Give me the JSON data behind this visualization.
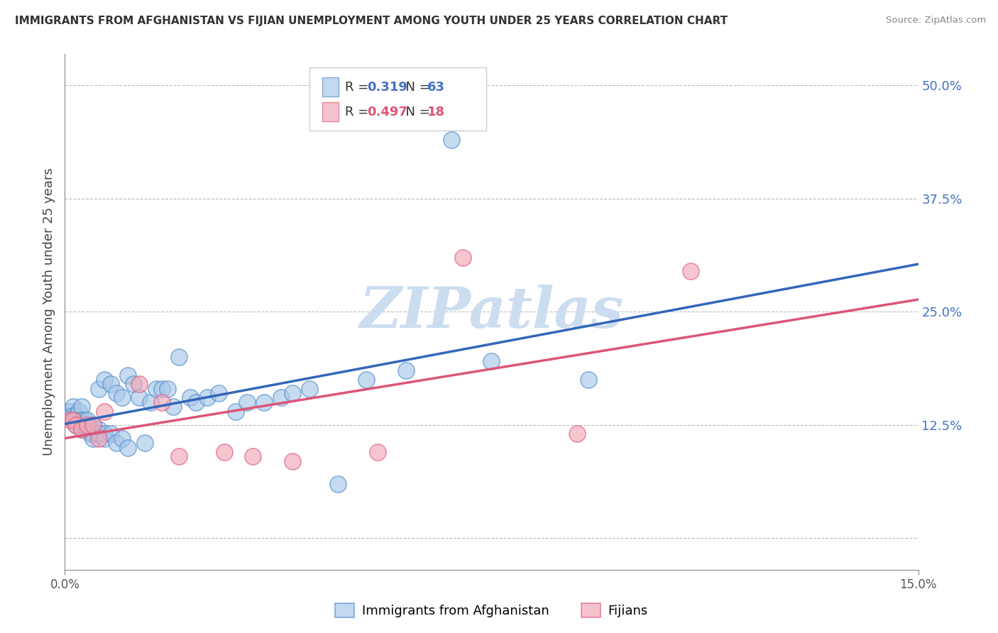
{
  "title": "IMMIGRANTS FROM AFGHANISTAN VS FIJIAN UNEMPLOYMENT AMONG YOUTH UNDER 25 YEARS CORRELATION CHART",
  "source": "Source: ZipAtlas.com",
  "ylabel": "Unemployment Among Youth under 25 years",
  "y_ticks": [
    0.0,
    0.125,
    0.25,
    0.375,
    0.5
  ],
  "y_tick_labels": [
    "",
    "12.5%",
    "25.0%",
    "37.5%",
    "50.0%"
  ],
  "x_range": [
    0.0,
    0.15
  ],
  "y_range": [
    -0.035,
    0.535
  ],
  "legend_label1": "Immigrants from Afghanistan",
  "legend_label2": "Fijians",
  "r1": "0.319",
  "n1": "63",
  "r2": "0.497",
  "n2": "18",
  "color_blue_fill": "#a8c8e8",
  "color_pink_fill": "#f0a8b8",
  "color_blue_edge": "#5590cc",
  "color_pink_edge": "#e06080",
  "color_blue_line": "#3366bb",
  "color_pink_line": "#dd5577",
  "color_blue_text": "#4472c4",
  "color_pink_text": "#dd5577",
  "watermark_color": "#ccddf0",
  "afghanistan_x": [
    0.0005,
    0.001,
    0.001,
    0.0015,
    0.0015,
    0.002,
    0.002,
    0.002,
    0.0025,
    0.0025,
    0.003,
    0.003,
    0.003,
    0.003,
    0.0035,
    0.0035,
    0.004,
    0.004,
    0.004,
    0.0045,
    0.005,
    0.005,
    0.005,
    0.005,
    0.006,
    0.006,
    0.006,
    0.007,
    0.007,
    0.007,
    0.008,
    0.008,
    0.009,
    0.009,
    0.01,
    0.01,
    0.011,
    0.011,
    0.012,
    0.013,
    0.014,
    0.015,
    0.016,
    0.017,
    0.018,
    0.019,
    0.02,
    0.022,
    0.023,
    0.025,
    0.027,
    0.03,
    0.032,
    0.035,
    0.038,
    0.04,
    0.043,
    0.048,
    0.053,
    0.06,
    0.068,
    0.075,
    0.092
  ],
  "afghanistan_y": [
    0.135,
    0.14,
    0.135,
    0.145,
    0.135,
    0.13,
    0.125,
    0.135,
    0.14,
    0.13,
    0.145,
    0.13,
    0.125,
    0.12,
    0.125,
    0.13,
    0.12,
    0.125,
    0.13,
    0.115,
    0.12,
    0.125,
    0.115,
    0.11,
    0.165,
    0.12,
    0.115,
    0.115,
    0.175,
    0.11,
    0.17,
    0.115,
    0.16,
    0.105,
    0.155,
    0.11,
    0.1,
    0.18,
    0.17,
    0.155,
    0.105,
    0.15,
    0.165,
    0.165,
    0.165,
    0.145,
    0.2,
    0.155,
    0.15,
    0.155,
    0.16,
    0.14,
    0.15,
    0.15,
    0.155,
    0.16,
    0.165,
    0.06,
    0.175,
    0.185,
    0.44,
    0.195,
    0.175
  ],
  "fijian_x": [
    0.001,
    0.0015,
    0.002,
    0.003,
    0.004,
    0.005,
    0.006,
    0.007,
    0.013,
    0.017,
    0.02,
    0.028,
    0.033,
    0.04,
    0.055,
    0.07,
    0.09,
    0.11
  ],
  "fijian_y": [
    0.13,
    0.13,
    0.125,
    0.12,
    0.125,
    0.125,
    0.11,
    0.14,
    0.17,
    0.15,
    0.09,
    0.095,
    0.09,
    0.085,
    0.095,
    0.31,
    0.115,
    0.295
  ]
}
